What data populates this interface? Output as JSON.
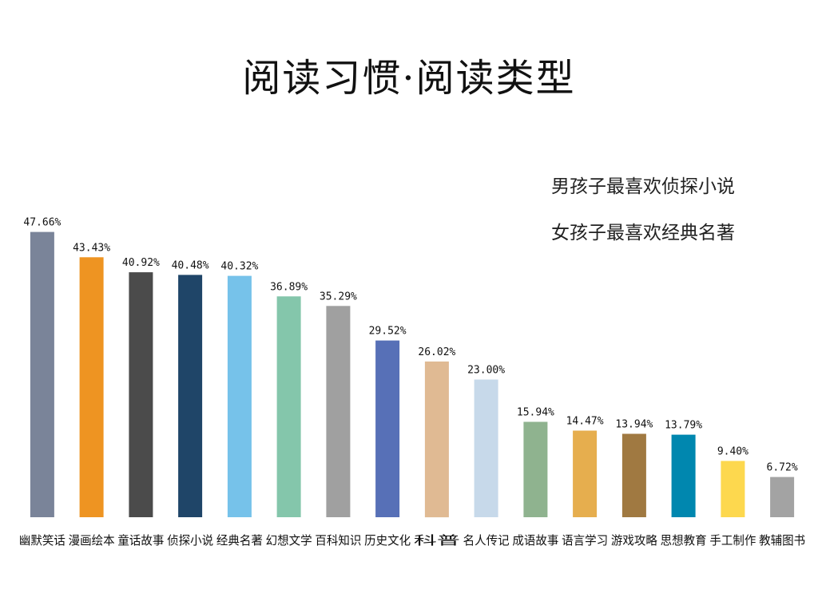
{
  "title": "阅读习惯·阅读类型",
  "notes": [
    "男孩子最喜欢侦探小说",
    "女孩子最喜欢经典名著"
  ],
  "chart_data": {
    "type": "bar",
    "categories": [
      "幽默笑话",
      "漫画绘本",
      "童话故事",
      "侦探小说",
      "经典名著",
      "幻想文学",
      "百科知识",
      "历史文化",
      "科普",
      "名人传记",
      "成语故事",
      "语言学习",
      "游戏攻略",
      "思想教育",
      "手工制作",
      "教辅图书"
    ],
    "values": [
      47.66,
      43.43,
      40.92,
      40.48,
      40.32,
      36.89,
      35.29,
      29.52,
      26.02,
      23.0,
      15.94,
      14.47,
      13.94,
      13.79,
      9.4,
      6.72
    ],
    "value_labels": [
      "47.66%",
      "43.43%",
      "40.92%",
      "40.48%",
      "40.32%",
      "36.89%",
      "35.29%",
      "29.52%",
      "26.02%",
      "23.00%",
      "15.94%",
      "14.47%",
      "13.94%",
      "13.79%",
      "9.40%",
      "6.72%"
    ],
    "colors": [
      "#7A8499",
      "#EE9422",
      "#4B4B4B",
      "#1F4568",
      "#76C2EA",
      "#84C6AB",
      "#A0A0A0",
      "#5770B7",
      "#E0BA93",
      "#C7D9EA",
      "#8FB38F",
      "#E6AE4E",
      "#A07941",
      "#0087AF",
      "#FDD84E",
      "#A3A3A3"
    ],
    "ylim": [
      0,
      50
    ],
    "grid": false,
    "legend": "none"
  }
}
